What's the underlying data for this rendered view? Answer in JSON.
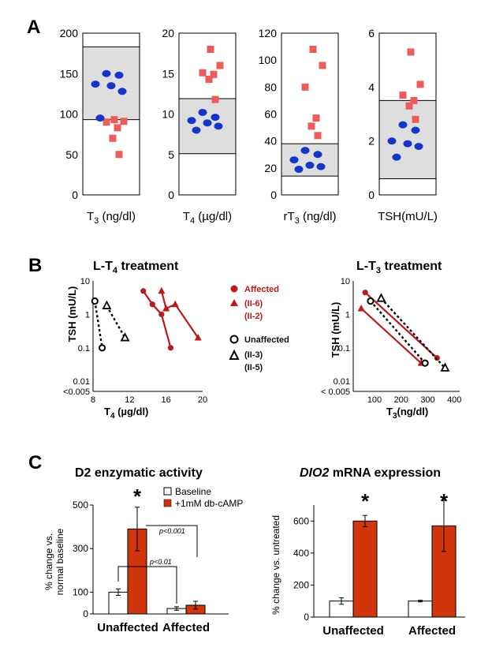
{
  "panels": {
    "A": "A",
    "B": "B",
    "C": "C"
  },
  "colors": {
    "affected": "#ef5a5a",
    "unaffected": "#1436c8",
    "dark_red": "#c0191a",
    "bar_red": "#d0350c",
    "band": "#dedede"
  },
  "panelA": [
    {
      "xlabel_main": "T",
      "xlabel_sub": "3",
      "xlabel_rest": " (ng/dl)",
      "ylim": [
        0,
        200
      ],
      "ticks": [
        "0",
        "50",
        "100",
        "150",
        "200"
      ],
      "tick_values": [
        0,
        50,
        100,
        150,
        200
      ],
      "normal_range": [
        93,
        183
      ],
      "affected": [
        50,
        70,
        83,
        90,
        91,
        93
      ],
      "unaffected": [
        95,
        128,
        135,
        137,
        148,
        150
      ]
    },
    {
      "xlabel_main": "T",
      "xlabel_sub": "4",
      "xlabel_rest": " (µg/dl)",
      "ylim": [
        0,
        20
      ],
      "ticks": [
        "0",
        "5",
        "10",
        "15",
        "20"
      ],
      "tick_values": [
        0,
        5,
        10,
        15,
        20
      ],
      "normal_range": [
        5.1,
        11.9
      ],
      "affected": [
        11.8,
        14.3,
        14.9,
        15.1,
        16,
        18
      ],
      "unaffected": [
        8,
        8.5,
        8.9,
        9.2,
        9.6,
        10.2
      ]
    },
    {
      "xlabel_main": "rT",
      "xlabel_sub": "3",
      "xlabel_rest": " (ng/dl)",
      "ylim": [
        0,
        120
      ],
      "ticks": [
        "0",
        "20",
        "40",
        "60",
        "80",
        "100",
        "120"
      ],
      "tick_values": [
        0,
        20,
        40,
        60,
        80,
        100,
        120
      ],
      "normal_range": [
        14,
        38
      ],
      "affected": [
        44,
        51,
        57,
        80,
        96,
        108
      ],
      "unaffected": [
        19,
        21,
        22,
        26,
        30,
        33
      ]
    },
    {
      "xlabel_main": "TSH(mU/L)",
      "xlabel_sub": "",
      "xlabel_rest": "",
      "ylim": [
        0,
        6
      ],
      "ticks": [
        "0",
        "2",
        "4",
        "6"
      ],
      "tick_values": [
        0,
        2,
        4,
        6
      ],
      "normal_range": [
        0.6,
        3.5
      ],
      "affected": [
        2.8,
        3.3,
        3.5,
        3.7,
        4.1,
        5.3
      ],
      "unaffected": [
        1.4,
        1.8,
        1.9,
        2,
        2.4,
        2.6
      ]
    }
  ],
  "panelB": {
    "left": {
      "title_main": "L-T",
      "title_sub": "4",
      "title_rest": " treatment",
      "ylabel": "TSH (mU/L)",
      "xlabel_main": "T",
      "xlabel_sub": "4",
      "xlabel_rest": " (µg/dl)",
      "xticks": [
        "8",
        "12",
        "16",
        "20"
      ],
      "xtick_values": [
        8,
        12,
        16,
        20
      ],
      "yticks": [
        "10",
        "1",
        "0.1",
        "0.01",
        "<0.005"
      ],
      "ytick_values": [
        10,
        1,
        0.1,
        0.01,
        0.005
      ],
      "series": [
        {
          "group": "affected",
          "marker": "circle",
          "x": [
            13.5,
            14.5,
            15.5,
            16.5
          ],
          "y": [
            5,
            2,
            1,
            0.1
          ]
        },
        {
          "group": "affected",
          "marker": "triangle",
          "x": [
            15.5,
            16,
            17,
            19.5
          ],
          "y": [
            5,
            1.5,
            2,
            0.2
          ]
        },
        {
          "group": "unaffected",
          "marker": "circle",
          "x": [
            8.2,
            9
          ],
          "y": [
            2.5,
            0.1
          ]
        },
        {
          "group": "unaffected",
          "marker": "triangle",
          "x": [
            9.5,
            11.5
          ],
          "y": [
            1.8,
            0.2
          ]
        }
      ]
    },
    "right": {
      "title_main": "L-T",
      "title_sub": "3",
      "title_rest": " treatment",
      "ylabel": "TSH (mU/L)",
      "xlabel_main": "T",
      "xlabel_sub": "3",
      "xlabel_rest": "(ng/dl)",
      "xticks": [
        "100",
        "200",
        "300",
        "400"
      ],
      "xtick_values": [
        100,
        200,
        300,
        400
      ],
      "yticks": [
        "10",
        "1",
        "0.1",
        "0.01",
        "< 0.005"
      ],
      "ytick_values": [
        10,
        1,
        0.1,
        0.01,
        0.005
      ],
      "series": [
        {
          "group": "affected",
          "marker": "circle",
          "x": [
            65,
            335
          ],
          "y": [
            4.5,
            0.05
          ]
        },
        {
          "group": "affected",
          "marker": "triangle",
          "x": [
            50,
            275
          ],
          "y": [
            1.5,
            0.035
          ]
        },
        {
          "group": "unaffected",
          "marker": "circle",
          "x": [
            85,
            290
          ],
          "y": [
            2.5,
            0.035
          ]
        },
        {
          "group": "unaffected",
          "marker": "triangle",
          "x": [
            125,
            365
          ],
          "y": [
            3,
            0.025
          ]
        }
      ]
    },
    "legend": {
      "affected": "Affected",
      "affected_1": "(II-6)",
      "affected_2": "(II-2)",
      "unaffected": "Unaffected",
      "unaffected_1": "(II-3)",
      "unaffected_2": "(II-5)"
    }
  },
  "panelC": {
    "left": {
      "title": "D2 enzymatic activity",
      "ylabel_1": "% change vs.",
      "ylabel_2": "normal baseline",
      "yticks": [
        "0",
        "100",
        "300",
        "500"
      ],
      "ytick_values": [
        0,
        100,
        300,
        500
      ],
      "ylim": [
        0,
        500
      ],
      "categories": [
        "Unaffected",
        "Affected"
      ],
      "series": [
        {
          "name": "Baseline",
          "values": [
            100,
            25
          ],
          "errors": [
            15,
            8
          ]
        },
        {
          "name": "+1mM db-cAMP",
          "values": [
            390,
            40
          ],
          "errors": [
            100,
            18
          ]
        }
      ],
      "stars": [
        "*"
      ],
      "brackets": [
        "p<0.001",
        "p<0.01"
      ]
    },
    "right": {
      "title_italic": "DIO2",
      "title_rest": " mRNA expression",
      "ylabel": "% change vs. untreated",
      "yticks": [
        "0",
        "200",
        "400",
        "600"
      ],
      "ytick_values": [
        0,
        200,
        400,
        600
      ],
      "ylim": [
        0,
        700
      ],
      "categories": [
        "Unaffected",
        "Affected"
      ],
      "series": [
        {
          "name": "Baseline",
          "values": [
            100,
            100
          ],
          "errors": [
            20,
            5
          ]
        },
        {
          "name": "+1mM db-cAMP",
          "values": [
            600,
            570
          ],
          "errors": [
            35,
            160
          ]
        }
      ],
      "stars": [
        "*",
        "*"
      ]
    }
  }
}
